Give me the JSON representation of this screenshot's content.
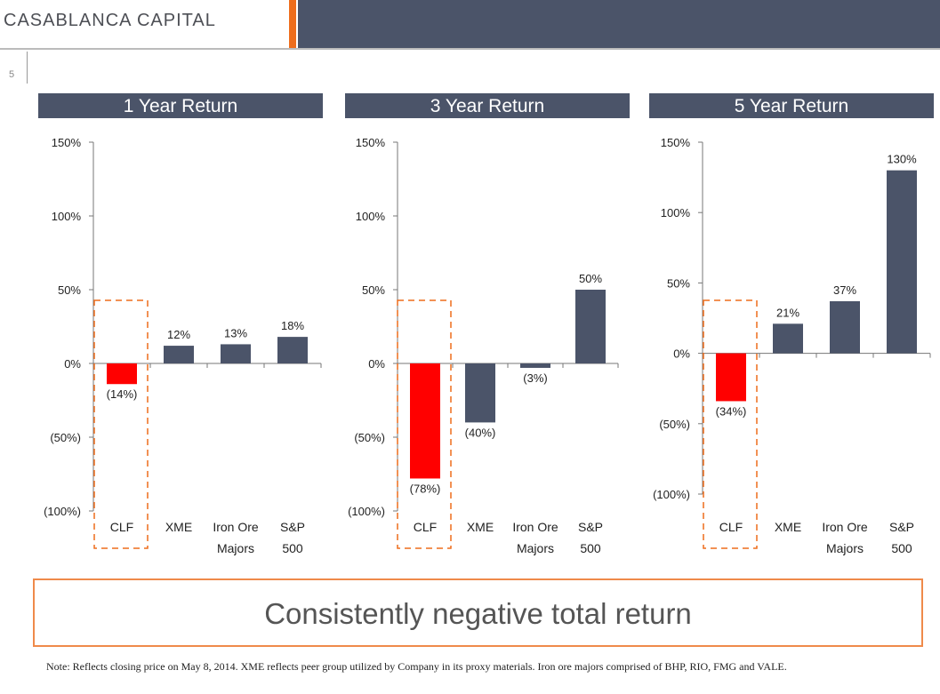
{
  "header": {
    "brand": "CASABLANCA CAPITAL",
    "page_number": "5"
  },
  "colors": {
    "highlight": "#ff0000",
    "bar": "#4b5469",
    "accent": "#ee6d1c"
  },
  "chart_data": [
    {
      "type": "bar",
      "title": "1 Year Return",
      "categories": [
        "CLF",
        "XME",
        "Iron Ore Majors",
        "S&P 500"
      ],
      "category_lines": [
        [
          "CLF"
        ],
        [
          "XME"
        ],
        [
          "Iron Ore",
          "Majors"
        ],
        [
          "S&P",
          "500"
        ]
      ],
      "values": [
        -14,
        12,
        13,
        18
      ],
      "labels": [
        "(14%)",
        "12%",
        "13%",
        "18%"
      ],
      "yticks": [
        150,
        100,
        50,
        0,
        -50,
        -100
      ],
      "ytick_labels": [
        "150%",
        "100%",
        "50%",
        "0%",
        "(50%)",
        "(100%)"
      ],
      "ylim": [
        -100,
        150
      ],
      "highlight": "CLF"
    },
    {
      "type": "bar",
      "title": "3 Year Return",
      "categories": [
        "CLF",
        "XME",
        "Iron Ore Majors",
        "S&P 500"
      ],
      "category_lines": [
        [
          "CLF"
        ],
        [
          "XME"
        ],
        [
          "Iron Ore",
          "Majors"
        ],
        [
          "S&P",
          "500"
        ]
      ],
      "values": [
        -78,
        -40,
        -3,
        50
      ],
      "labels": [
        "(78%)",
        "(40%)",
        "(3%)",
        "50%"
      ],
      "yticks": [
        150,
        100,
        50,
        0,
        -50,
        -100
      ],
      "ytick_labels": [
        "150%",
        "100%",
        "50%",
        "0%",
        "(50%)",
        "(100%)"
      ],
      "ylim": [
        -100,
        150
      ],
      "highlight": "CLF"
    },
    {
      "type": "bar",
      "title": "5 Year Return",
      "categories": [
        "CLF",
        "XME",
        "Iron Ore Majors",
        "S&P 500"
      ],
      "category_lines": [
        [
          "CLF"
        ],
        [
          "XME"
        ],
        [
          "Iron Ore",
          "Majors"
        ],
        [
          "S&P",
          "500"
        ]
      ],
      "values": [
        -34,
        21,
        37,
        130
      ],
      "labels": [
        "(34%)",
        "21%",
        "37%",
        "130%"
      ],
      "yticks": [
        150,
        100,
        50,
        0,
        -50,
        -100
      ],
      "ytick_labels": [
        "150%",
        "100%",
        "50%",
        "0%",
        "(50%)",
        "(100%)"
      ],
      "ylim": [
        -100,
        150
      ],
      "highlight": "CLF"
    }
  ],
  "callout": "Consistently negative total return",
  "note": "Note: Reflects closing price on May 8, 2014. XME reflects peer group utilized by Company in its proxy materials.  Iron ore majors comprised of BHP, RIO, FMG and VALE."
}
